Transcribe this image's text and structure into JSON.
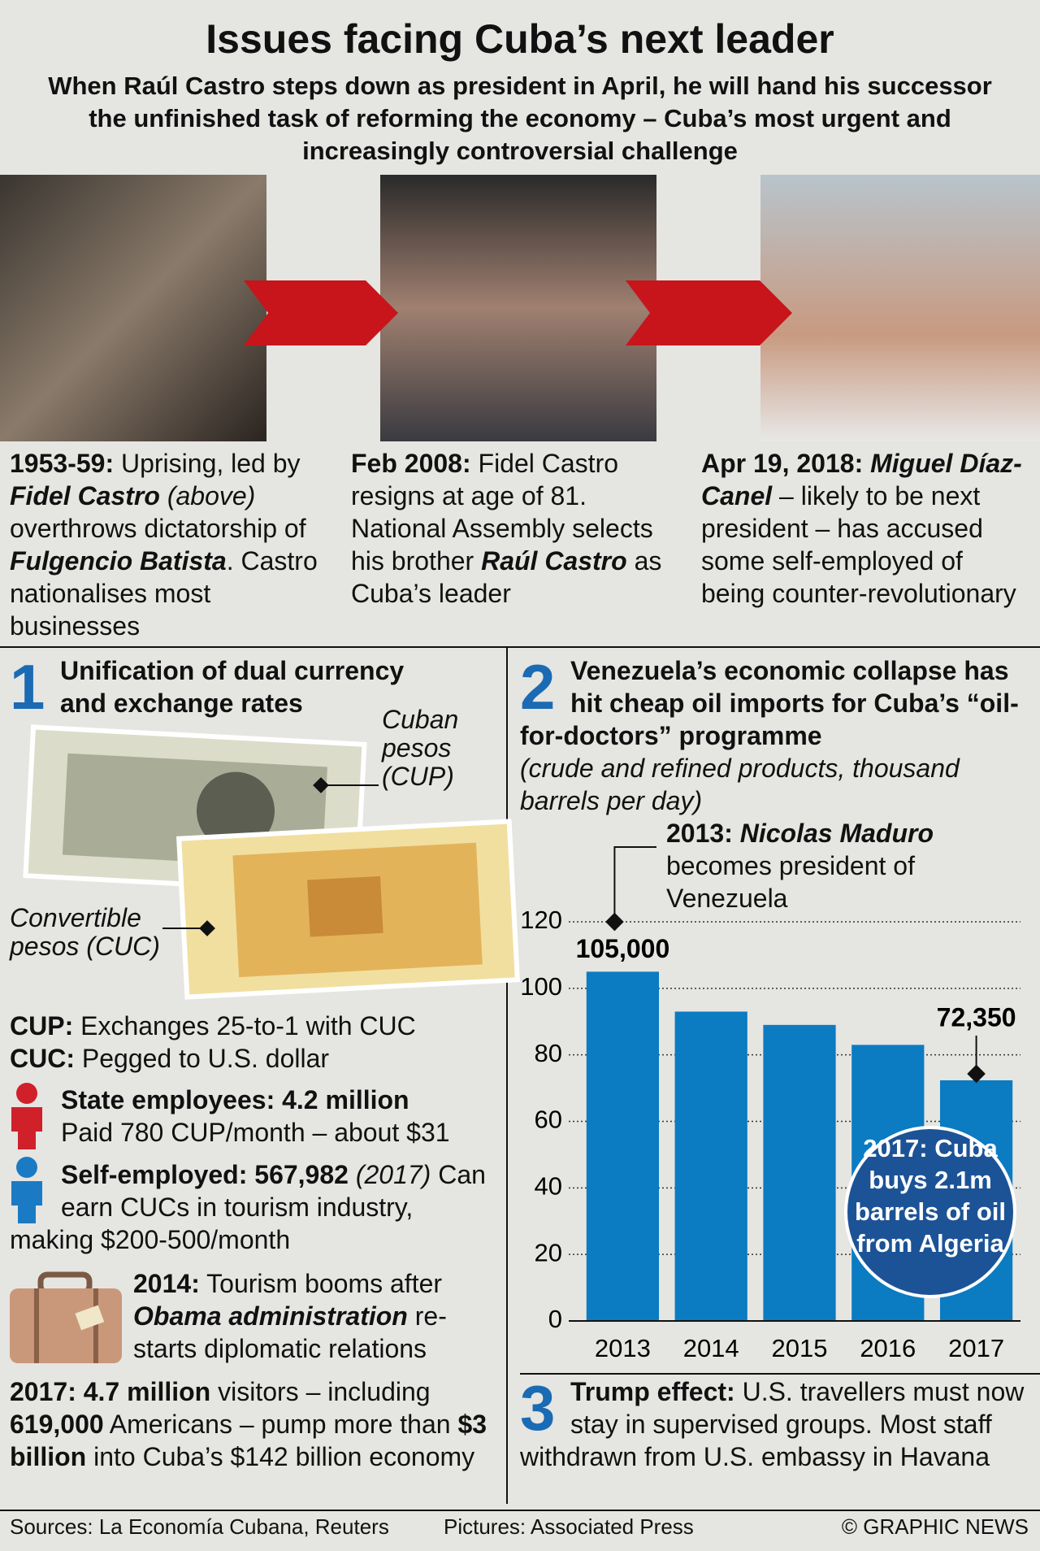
{
  "header": {
    "title": "Issues facing Cuba’s next leader",
    "subtitle": "When Raúl Castro steps down as president in April, he will hand his successor the unfinished task of reforming the economy – Cuba’s most urgent and increasingly controversial challenge"
  },
  "timeline": [
    [
      "1953-59:",
      "Uprising, led by",
      "Fidel Castro",
      "(above)",
      "overthrows dictatorship of",
      "Fulgencio Batista",
      ". Castro nationalises most businesses"
    ],
    [
      "Feb 2008:",
      "Fidel Castro resigns at age of 81. National Assembly selects his brother",
      "Raúl Castro",
      "as Cuba’s leader"
    ],
    [
      "Apr 19, 2018:",
      "Miguel Díaz-Canel",
      "– likely to be next president – has accused some self-employed of being counter-revolutionary"
    ]
  ],
  "section1": {
    "number": "1",
    "heading": "Unification of dual currency and exchange rates",
    "cup_label": "Cuban pesos (CUP)",
    "cuc_label": "Convertible pesos (CUC)",
    "rates": [
      [
        "CUP:",
        "Exchanges 25-to-1 with CUC"
      ],
      [
        "CUC:",
        "Pegged to U.S. dollar"
      ]
    ],
    "state": [
      "State employees: 4.2 million",
      "Paid 780 CUP/month – about $31"
    ],
    "self_employed": [
      "Self-employed: 567,982",
      "(2017)",
      "Can earn CUCs in tourism industry, making $200-500/month"
    ],
    "tourism": [
      "2014:",
      "Tourism booms after",
      "Obama administration",
      "re-starts diplomatic relations"
    ],
    "visitors": [
      "2017: 4.7 million",
      "visitors – including",
      "619,000",
      "Americans – pump more than",
      "$3 billion",
      "into Cuba’s $142 billion economy"
    ]
  },
  "chart_data": {
    "type": "bar",
    "number": "2",
    "title": "Venezuela’s economic collapse has hit cheap oil imports for Cuba’s “oil-for-doctors” programme",
    "subtitle": "(crude and refined products, thousand barrels per day)",
    "categories": [
      "2013",
      "2014",
      "2015",
      "2016",
      "2017"
    ],
    "values": [
      105,
      93,
      89,
      83,
      72.35
    ],
    "value_labels": [
      "105,000",
      null,
      null,
      null,
      "72,350"
    ],
    "color": "#0b7bc2",
    "ylim": [
      0,
      120
    ],
    "yticks": [
      0,
      20,
      40,
      60,
      80,
      100,
      120
    ],
    "grid": true,
    "annotation": [
      "2013:",
      "Nicolas Maduro",
      "becomes president of Venezuela"
    ],
    "callout": "2017: Cuba buys 2.1m barrels of oil from Algeria"
  },
  "section3": {
    "number": "3",
    "text": [
      "Trump effect:",
      "U.S. travellers must now stay in supervised groups. Most staff withdrawn from U.S. embassy in Havana"
    ]
  },
  "footer": {
    "sources": "Sources: La Economía Cubana, Reuters",
    "pictures": "Pictures: Associated Press",
    "credit": "© GRAPHIC NEWS"
  }
}
